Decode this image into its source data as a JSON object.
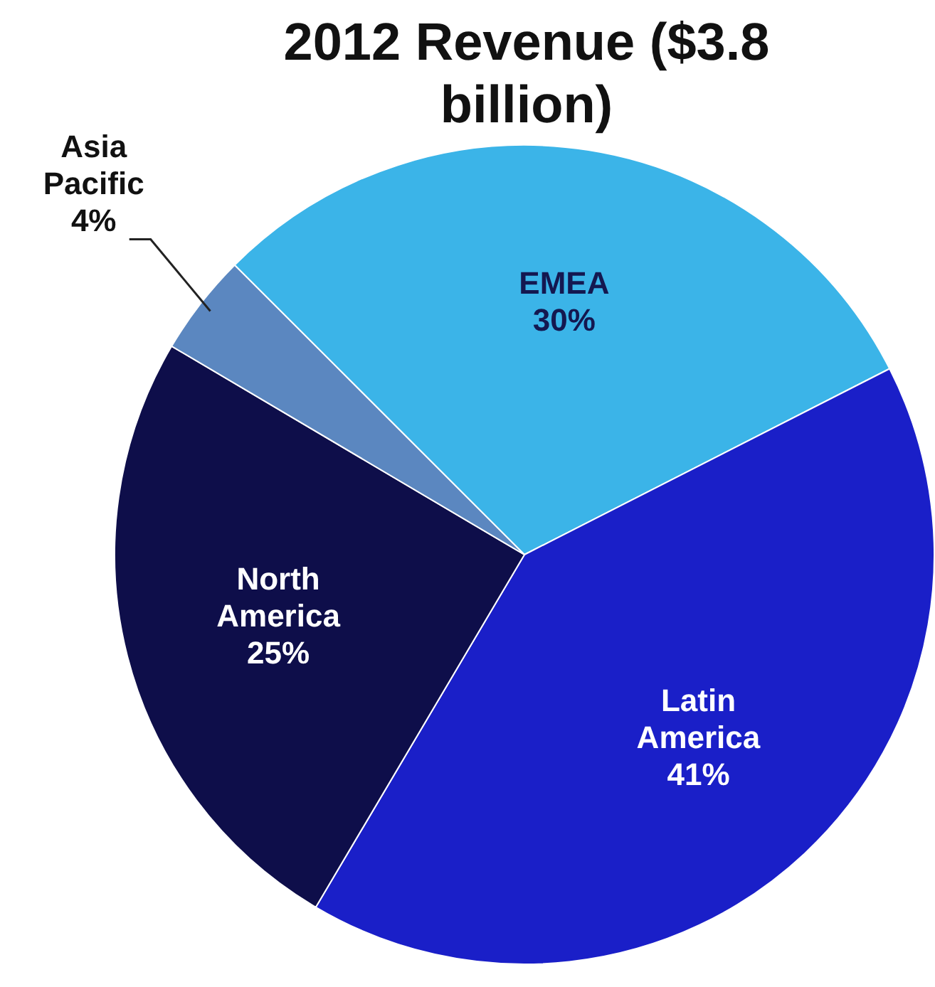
{
  "chart_data": {
    "type": "pie",
    "title": "2012 Revenue ($3.8 billion)",
    "categories": [
      "EMEA",
      "Latin America",
      "North America",
      "Asia Pacific"
    ],
    "values": [
      30,
      41,
      25,
      4
    ],
    "value_labels": [
      "30%",
      "41%",
      "25%",
      "4%"
    ],
    "colors": [
      "#3bb4e8",
      "#1a1fc8",
      "#0e0e4a",
      "#5b87c0"
    ],
    "legend": false
  }
}
